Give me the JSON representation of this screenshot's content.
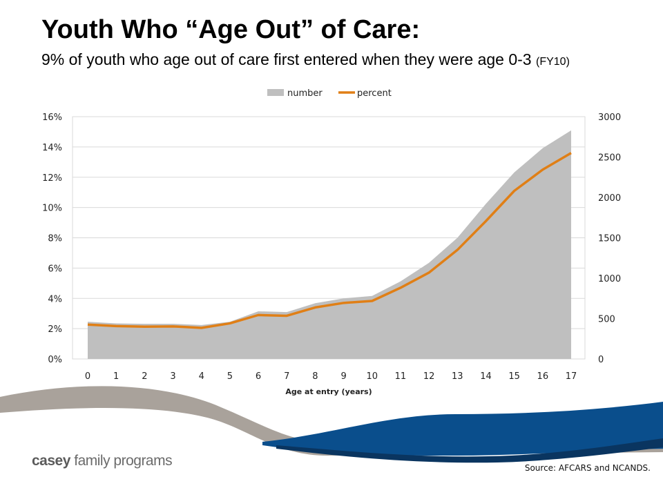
{
  "title": "Youth Who “Age Out” of Care:",
  "subtitle": {
    "main": "9% of youth who age out of care first entered when they were age 0-3",
    "note": "(FY10)"
  },
  "logo": {
    "brand": "casey",
    "rest": " family programs"
  },
  "source": "Source: AFCARS and NCANDS.",
  "colors": {
    "number_fill": "#bfbfbf",
    "percent_line": "#e07f16",
    "wave_taupe": "#a9a29b",
    "wave_blue": "#0a4e8c",
    "wave_navy": "#0a3560"
  },
  "chart_data": {
    "type": "area",
    "xlabel": "Age at entry (years)",
    "x": [
      0,
      1,
      2,
      3,
      4,
      5,
      6,
      7,
      8,
      9,
      10,
      11,
      12,
      13,
      14,
      15,
      16,
      17
    ],
    "legend": {
      "position": "top",
      "entries": [
        "number",
        "percent"
      ]
    },
    "series": [
      {
        "name": "number",
        "type": "area",
        "axis": "right",
        "values": [
          460,
          440,
          435,
          435,
          420,
          460,
          590,
          580,
          690,
          750,
          780,
          960,
          1190,
          1500,
          1920,
          2310,
          2610,
          2830
        ]
      },
      {
        "name": "percent",
        "type": "line",
        "axis": "left",
        "values": [
          2.27,
          2.17,
          2.13,
          2.15,
          2.05,
          2.35,
          2.9,
          2.85,
          3.4,
          3.7,
          3.83,
          4.7,
          5.7,
          7.2,
          9.1,
          11.1,
          12.5,
          13.6
        ]
      }
    ],
    "y_left": {
      "ylim": [
        0,
        16
      ],
      "ticks": [
        "0%",
        "2%",
        "4%",
        "6%",
        "8%",
        "10%",
        "12%",
        "14%",
        "16%"
      ]
    },
    "y_right": {
      "ylim": [
        0,
        3000
      ],
      "ticks": [
        "0",
        "500",
        "1000",
        "1500",
        "2000",
        "2500",
        "3000"
      ]
    },
    "grid": true
  }
}
